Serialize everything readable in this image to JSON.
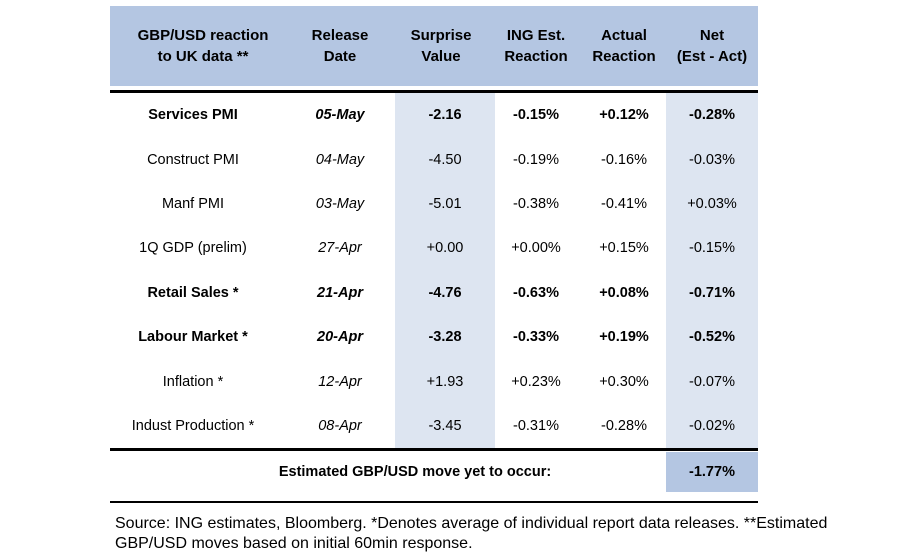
{
  "headers": [
    "GBP/USD reaction\nto UK data **",
    "Release\nDate",
    "Surprise\nValue",
    "ING Est.\nReaction",
    "Actual\nReaction",
    "Net\n(Est - Act)"
  ],
  "rows": [
    {
      "label": "Services PMI",
      "date": "05-May",
      "surprise": "-2.16",
      "est": "-0.15%",
      "actual": "+0.12%",
      "net": "-0.28%",
      "bold": true
    },
    {
      "label": "Construct PMI",
      "date": "04-May",
      "surprise": "-4.50",
      "est": "-0.19%",
      "actual": "-0.16%",
      "net": "-0.03%",
      "bold": false
    },
    {
      "label": "Manf PMI",
      "date": "03-May",
      "surprise": "-5.01",
      "est": "-0.38%",
      "actual": "-0.41%",
      "net": "+0.03%",
      "bold": false
    },
    {
      "label": "1Q GDP (prelim)",
      "date": "27-Apr",
      "surprise": "+0.00",
      "est": "+0.00%",
      "actual": "+0.15%",
      "net": "-0.15%",
      "bold": false
    },
    {
      "label": "Retail Sales *",
      "date": "21-Apr",
      "surprise": "-4.76",
      "est": "-0.63%",
      "actual": "+0.08%",
      "net": "-0.71%",
      "bold": true
    },
    {
      "label": "Labour Market *",
      "date": "20-Apr",
      "surprise": "-3.28",
      "est": "-0.33%",
      "actual": "+0.19%",
      "net": "-0.52%",
      "bold": true
    },
    {
      "label": "Inflation *",
      "date": "12-Apr",
      "surprise": "+1.93",
      "est": "+0.23%",
      "actual": "+0.30%",
      "net": "-0.07%",
      "bold": false
    },
    {
      "label": "Indust Production *",
      "date": "08-Apr",
      "surprise": "-3.45",
      "est": "-0.31%",
      "actual": "-0.28%",
      "net": "-0.02%",
      "bold": false
    }
  ],
  "summary": {
    "label": "Estimated GBP/USD move yet to occur:",
    "value": "-1.77%"
  },
  "source": "Source: ING estimates, Bloomberg. *Denotes average of individual report data releases. **Estimated GBP/USD moves based on initial 60min response.",
  "colors": {
    "header_bg": "#b4c6e2",
    "column_shade": "#dde5f1"
  }
}
